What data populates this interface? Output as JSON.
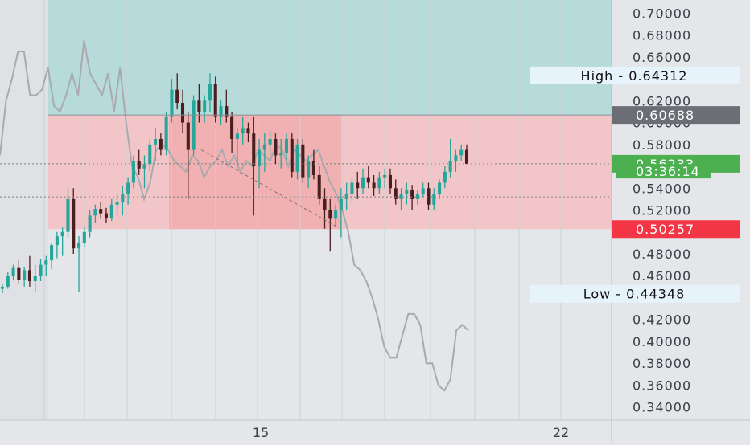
{
  "chart_data": {
    "type": "candlestick",
    "x_axis_labels": [
      "15",
      "22"
    ],
    "y_ticks": [
      0.34,
      0.36,
      0.38,
      0.4,
      0.42,
      0.44,
      0.46,
      0.48,
      0.5,
      0.52,
      0.54,
      0.56,
      0.58,
      0.6,
      0.62,
      0.64,
      0.66,
      0.68,
      0.7
    ],
    "ylim": [
      0.328,
      0.712
    ],
    "y_tick_decimals": 5,
    "candles": [
      [
        0.448,
        0.452,
        0.444,
        0.45
      ],
      [
        0.45,
        0.463,
        0.448,
        0.46
      ],
      [
        0.46,
        0.47,
        0.456,
        0.467
      ],
      [
        0.467,
        0.474,
        0.453,
        0.456
      ],
      [
        0.456,
        0.468,
        0.45,
        0.465
      ],
      [
        0.465,
        0.478,
        0.45,
        0.455
      ],
      [
        0.455,
        0.47,
        0.445,
        0.46
      ],
      [
        0.46,
        0.475,
        0.455,
        0.47
      ],
      [
        0.47,
        0.478,
        0.46,
        0.474
      ],
      [
        0.474,
        0.49,
        0.466,
        0.488
      ],
      [
        0.488,
        0.5,
        0.476,
        0.496
      ],
      [
        0.496,
        0.504,
        0.478,
        0.5
      ],
      [
        0.5,
        0.54,
        0.495,
        0.53
      ],
      [
        0.53,
        0.54,
        0.48,
        0.485
      ],
      [
        0.485,
        0.496,
        0.445,
        0.49
      ],
      [
        0.49,
        0.505,
        0.486,
        0.5
      ],
      [
        0.5,
        0.52,
        0.495,
        0.515
      ],
      [
        0.515,
        0.525,
        0.508,
        0.521
      ],
      [
        0.521,
        0.527,
        0.512,
        0.517
      ],
      [
        0.517,
        0.522,
        0.508,
        0.513
      ],
      [
        0.513,
        0.53,
        0.51,
        0.525
      ],
      [
        0.525,
        0.535,
        0.515,
        0.527
      ],
      [
        0.527,
        0.542,
        0.515,
        0.535
      ],
      [
        0.535,
        0.55,
        0.525,
        0.545
      ],
      [
        0.545,
        0.57,
        0.54,
        0.565
      ],
      [
        0.565,
        0.575,
        0.552,
        0.558
      ],
      [
        0.558,
        0.57,
        0.54,
        0.562
      ],
      [
        0.562,
        0.585,
        0.555,
        0.58
      ],
      [
        0.58,
        0.595,
        0.565,
        0.585
      ],
      [
        0.585,
        0.59,
        0.57,
        0.575
      ],
      [
        0.575,
        0.61,
        0.57,
        0.605
      ],
      [
        0.605,
        0.64,
        0.6,
        0.63
      ],
      [
        0.63,
        0.645,
        0.612,
        0.618
      ],
      [
        0.618,
        0.63,
        0.59,
        0.6
      ],
      [
        0.6,
        0.61,
        0.53,
        0.575
      ],
      [
        0.575,
        0.625,
        0.57,
        0.62
      ],
      [
        0.62,
        0.635,
        0.6,
        0.61
      ],
      [
        0.61,
        0.625,
        0.6,
        0.62
      ],
      [
        0.62,
        0.645,
        0.61,
        0.635
      ],
      [
        0.635,
        0.642,
        0.6,
        0.605
      ],
      [
        0.605,
        0.62,
        0.598,
        0.615
      ],
      [
        0.615,
        0.63,
        0.6,
        0.605
      ],
      [
        0.605,
        0.61,
        0.572,
        0.585
      ],
      [
        0.585,
        0.595,
        0.56,
        0.59
      ],
      [
        0.59,
        0.605,
        0.58,
        0.595
      ],
      [
        0.595,
        0.6,
        0.582,
        0.59
      ],
      [
        0.59,
        0.605,
        0.515,
        0.56
      ],
      [
        0.56,
        0.585,
        0.54,
        0.575
      ],
      [
        0.575,
        0.59,
        0.555,
        0.58
      ],
      [
        0.58,
        0.592,
        0.57,
        0.585
      ],
      [
        0.585,
        0.59,
        0.562,
        0.57
      ],
      [
        0.57,
        0.585,
        0.558,
        0.572
      ],
      [
        0.572,
        0.59,
        0.565,
        0.585
      ],
      [
        0.585,
        0.59,
        0.55,
        0.555
      ],
      [
        0.555,
        0.585,
        0.548,
        0.58
      ],
      [
        0.58,
        0.585,
        0.545,
        0.55
      ],
      [
        0.55,
        0.57,
        0.54,
        0.565
      ],
      [
        0.565,
        0.575,
        0.548,
        0.552
      ],
      [
        0.552,
        0.56,
        0.525,
        0.53
      ],
      [
        0.53,
        0.54,
        0.503,
        0.52
      ],
      [
        0.52,
        0.53,
        0.482,
        0.512
      ],
      [
        0.512,
        0.525,
        0.505,
        0.52
      ],
      [
        0.52,
        0.54,
        0.495,
        0.53
      ],
      [
        0.53,
        0.545,
        0.52,
        0.535
      ],
      [
        0.535,
        0.55,
        0.528,
        0.545
      ],
      [
        0.545,
        0.555,
        0.53,
        0.54
      ],
      [
        0.54,
        0.558,
        0.535,
        0.55
      ],
      [
        0.55,
        0.56,
        0.54,
        0.545
      ],
      [
        0.545,
        0.552,
        0.533,
        0.54
      ],
      [
        0.54,
        0.555,
        0.535,
        0.55
      ],
      [
        0.55,
        0.558,
        0.54,
        0.552
      ],
      [
        0.552,
        0.558,
        0.535,
        0.54
      ],
      [
        0.54,
        0.548,
        0.525,
        0.53
      ],
      [
        0.53,
        0.54,
        0.52,
        0.535
      ],
      [
        0.535,
        0.545,
        0.525,
        0.538
      ],
      [
        0.538,
        0.543,
        0.52,
        0.53
      ],
      [
        0.53,
        0.538,
        0.525,
        0.535
      ],
      [
        0.535,
        0.545,
        0.532,
        0.54
      ],
      [
        0.54,
        0.545,
        0.52,
        0.525
      ],
      [
        0.525,
        0.54,
        0.52,
        0.535
      ],
      [
        0.535,
        0.548,
        0.53,
        0.545
      ],
      [
        0.545,
        0.56,
        0.54,
        0.555
      ],
      [
        0.555,
        0.585,
        0.55,
        0.565
      ],
      [
        0.565,
        0.575,
        0.555,
        0.57
      ],
      [
        0.57,
        0.58,
        0.565,
        0.575
      ],
      [
        0.575,
        0.58,
        0.562,
        0.5623
      ]
    ],
    "overlay_series": [
      0.57,
      0.62,
      0.64,
      0.665,
      0.665,
      0.625,
      0.625,
      0.63,
      0.65,
      0.615,
      0.61,
      0.625,
      0.645,
      0.625,
      0.675,
      0.645,
      0.635,
      0.625,
      0.645,
      0.61,
      0.65,
      0.6,
      0.56,
      0.55,
      0.53,
      0.545,
      0.575,
      0.58,
      0.575,
      0.565,
      0.56,
      0.555,
      0.57,
      0.565,
      0.55,
      0.56,
      0.565,
      0.575,
      0.56,
      0.57,
      0.555,
      0.565,
      0.56,
      0.575,
      0.57,
      0.565,
      0.58,
      0.575,
      0.56,
      0.575,
      0.57,
      0.565,
      0.57,
      0.575,
      0.56,
      0.545,
      0.535,
      0.52,
      0.5,
      0.47,
      0.465,
      0.455,
      0.44,
      0.42,
      0.395,
      0.385,
      0.385,
      0.405,
      0.425,
      0.425,
      0.415,
      0.38,
      0.38,
      0.36,
      0.355,
      0.365,
      0.41,
      0.415,
      0.41
    ],
    "zones": [
      {
        "name": "target",
        "from": 0.6069,
        "to": 0.712,
        "color": "#b7dbda"
      },
      {
        "name": "stop",
        "from": 0.5026,
        "to": 0.6069,
        "color": "#f2c6c8"
      },
      {
        "name": "entry-highlight",
        "from": 0.5026,
        "to": 0.6069,
        "color": "#f0a9ab"
      }
    ],
    "reference_lines": [
      0.6069,
      0.5623,
      0.532
    ],
    "price_labels": [
      {
        "name": "high",
        "text": "High  -  0.64312",
        "value": 0.64312,
        "bg": "#e6f3fb",
        "color": "#111111"
      },
      {
        "name": "level",
        "text": "0.60688",
        "value": 0.60688,
        "bg": "#6b6f75",
        "color": "#ffffff"
      },
      {
        "name": "last-price",
        "text": "0.56233",
        "value": 0.56233,
        "bg": "#4caf50",
        "color": "#ffffff"
      },
      {
        "name": "countdown",
        "text": "03:36:14",
        "value": 0.5555,
        "bg": "#4caf50",
        "color": "#ffffff",
        "below": true
      },
      {
        "name": "stop",
        "text": "0.50257",
        "value": 0.50257,
        "bg": "#f23645",
        "color": "#ffffff"
      },
      {
        "name": "low",
        "text": "Low  -  0.44348",
        "value": 0.44348,
        "bg": "#e6f3fb",
        "color": "#111111"
      }
    ],
    "colors": {
      "up": "#26a69a",
      "down": "#4a1e1e",
      "overlay": "#a9aaad",
      "axis_text": "#3a3e45"
    }
  }
}
